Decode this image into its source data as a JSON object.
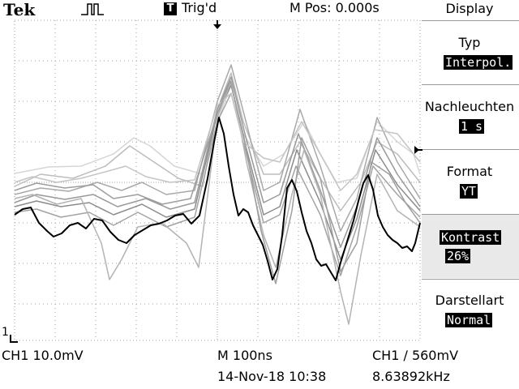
{
  "header": {
    "brand": "Tek",
    "trigger_indicator": "T",
    "trigger_status": "Trig'd",
    "horizontal_position": "M Pos: 0.000s"
  },
  "menu": {
    "title": "Display",
    "items": [
      {
        "label": "Typ",
        "value": "Interpol."
      },
      {
        "label": "Nachleuchten",
        "value": "1 s"
      },
      {
        "label": "Format",
        "value": "YT"
      },
      {
        "label": "Kontrast",
        "value": "26%"
      },
      {
        "label": "Darstellart",
        "value": "Normal"
      }
    ]
  },
  "status_bar": {
    "channel_scale": "CH1  10.0mV",
    "timebase": "M 100ns",
    "trigger_setting": "CH1 ∕ 560mV",
    "timestamp": "14-Nov-18 10:38",
    "frequency": "8.63892kHz"
  },
  "channel_marker": "1",
  "colors": {
    "background": "#ffffff",
    "graticule": "#a0a0a0",
    "live_trace": "#000000",
    "persist_trace": "#8c8c8c"
  }
}
